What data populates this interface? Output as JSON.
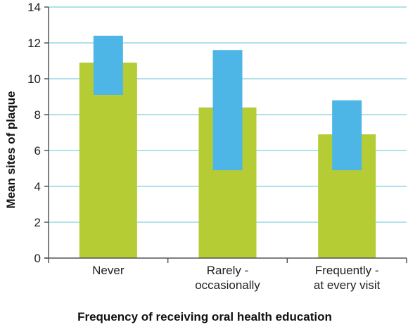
{
  "chart_data": {
    "type": "bar",
    "categories": [
      [
        "Never"
      ],
      [
        "Rarely -",
        "occasionally"
      ],
      [
        "Frequently -",
        "at every visit"
      ]
    ],
    "series": [
      {
        "values": [
          10.9,
          8.4,
          6.9
        ]
      },
      {
        "ranges": [
          [
            9.1,
            12.4
          ],
          [
            4.9,
            11.6
          ],
          [
            4.9,
            8.8
          ]
        ]
      }
    ],
    "xlabel": "Frequency of receiving oral health education",
    "ylabel": "Mean sites of plaque",
    "ylim": [
      0,
      14
    ],
    "yticks": [
      0,
      2,
      4,
      6,
      8,
      10,
      12,
      14
    ],
    "grid": true,
    "colors": {
      "bar": "#b5cc34",
      "range": "#4db6e6",
      "grid": "#7fd0de",
      "axis": "#555555"
    }
  }
}
